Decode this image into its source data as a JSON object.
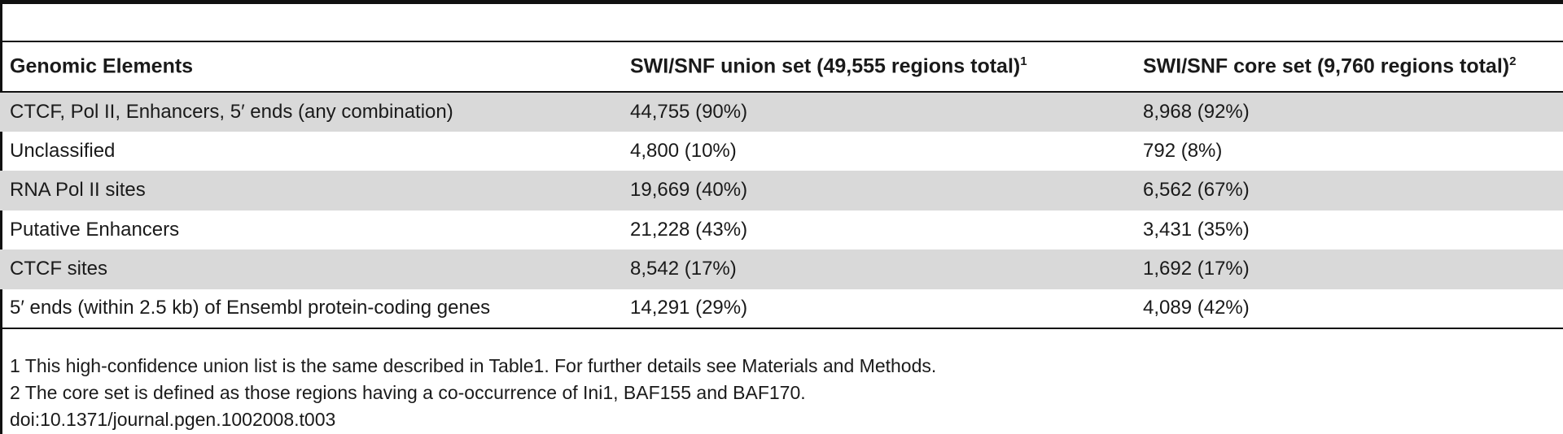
{
  "table": {
    "headers": [
      {
        "text": "Genomic Elements",
        "sup": ""
      },
      {
        "text": "SWI/SNF union set (49,555 regions total)",
        "sup": "1"
      },
      {
        "text": "SWI/SNF core set (9,760 regions total)",
        "sup": "2"
      }
    ],
    "rows": [
      [
        "CTCF, Pol II, Enhancers, 5′ ends (any combination)",
        "44,755 (90%)",
        "8,968 (92%)"
      ],
      [
        "Unclassified",
        "4,800 (10%)",
        "792 (8%)"
      ],
      [
        "RNA Pol II sites",
        "19,669 (40%)",
        "6,562 (67%)"
      ],
      [
        "Putative Enhancers",
        "21,228 (43%)",
        "3,431 (35%)"
      ],
      [
        "CTCF sites",
        "8,542 (17%)",
        "1,692 (17%)"
      ],
      [
        "5′ ends (within 2.5 kb) of Ensembl protein-coding genes",
        "14,291 (29%)",
        "4,089 (42%)"
      ]
    ]
  },
  "footnotes": [
    "1 This high-confidence union list is the same described in Table1. For further details see Materials and Methods.",
    "2 The core set is defined as those regions having a co-occurrence of Ini1, BAF155 and BAF170."
  ],
  "doi": "doi:10.1371/journal.pgen.1002008.t003"
}
